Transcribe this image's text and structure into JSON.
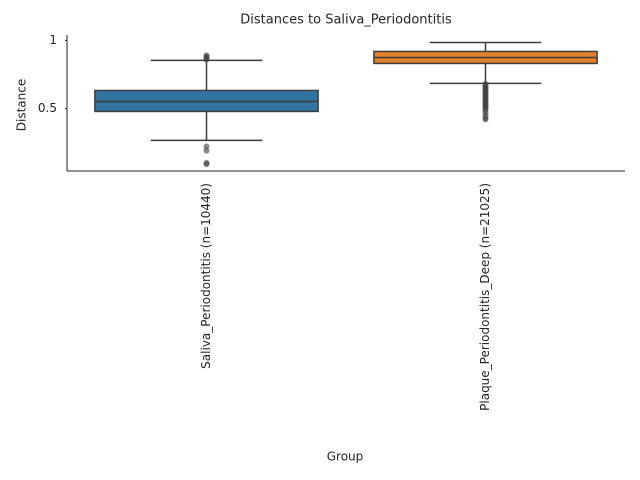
{
  "chart_data": {
    "type": "box",
    "title": "Distances to Saliva_Periodontitis",
    "xlabel": "Group",
    "ylabel": "Distance",
    "categories": [
      "Saliva_Periodontitis (n=10440)",
      "Plaque_Periodontitis_Deep (n=21025)"
    ],
    "boxes": [
      {
        "color": "#3274a1",
        "whislo": 0.265,
        "q1": 0.478,
        "median": 0.551,
        "q3": 0.632,
        "whishi": 0.853,
        "outliers": [
          0.86,
          0.87,
          0.88,
          0.89,
          0.22,
          0.19,
          0.1,
          0.09
        ]
      },
      {
        "color": "#e1812c",
        "whislo": 0.684,
        "q1": 0.831,
        "median": 0.875,
        "q3": 0.919,
        "whishi": 0.985,
        "outliers": [
          0.68,
          0.67,
          0.66,
          0.65,
          0.64,
          0.63,
          0.62,
          0.61,
          0.6,
          0.59,
          0.58,
          0.57,
          0.56,
          0.55,
          0.54,
          0.53,
          0.52,
          0.51,
          0.5,
          0.49,
          0.47,
          0.45,
          0.43,
          0.42
        ]
      }
    ],
    "ylim": [
      0.04,
      1.04
    ],
    "yticks": [
      0.5,
      1.0
    ]
  }
}
